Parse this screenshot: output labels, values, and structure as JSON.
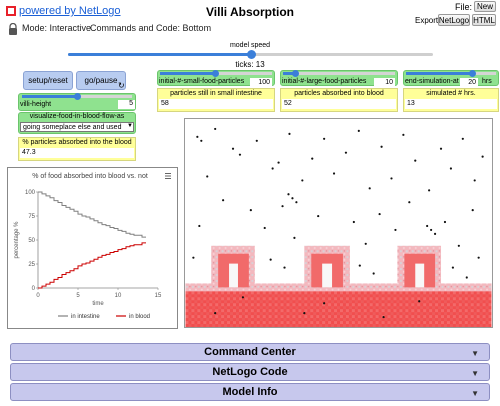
{
  "header": {
    "powered_by": "powered by NetLogo",
    "title": "Villi Absorption",
    "mode": "Mode: Interactive",
    "commands_position": "Commands and Code: Bottom",
    "file_label": "File:",
    "new_label": "New",
    "export_label": "Export:",
    "export_netlogo": "NetLogo",
    "export_html": "HTML"
  },
  "speed": {
    "label": "model speed",
    "value": 0.5,
    "ticks_text": "ticks: 13"
  },
  "buttons": {
    "setup": "setup/reset",
    "go": "go/pause"
  },
  "villi_height": {
    "label": "villi-height",
    "value": "5"
  },
  "visualize_chooser": {
    "label": "visualize-food-in-blood-flow-as",
    "selected": "going someplace else and used"
  },
  "pct_monitor": {
    "label": "% particles absorbed into the blood",
    "value": "47.3"
  },
  "sliders": {
    "small": {
      "label": "initial-#-small-food-particles",
      "value": "100"
    },
    "large": {
      "label": "initial-#-large-food-particles",
      "value": "10"
    },
    "end": {
      "label": "end-simulation-at",
      "value": "20",
      "units": "hrs"
    }
  },
  "monitors": {
    "small_still": {
      "label": "particles still in small intestine",
      "value": "58"
    },
    "absorbed": {
      "label": "particles absorbed into blood",
      "value": "52"
    },
    "simulated": {
      "label": "simulated # hrs.",
      "value": "13"
    }
  },
  "plot": {
    "title": "% of food absorbed into blood vs. not",
    "menu_icon": "hamburger-icon"
  },
  "chart_data": {
    "type": "line",
    "title": "% of food absorbed into blood vs. not",
    "xlabel": "time",
    "ylabel": "percentage %",
    "xlim": [
      0,
      15
    ],
    "ylim": [
      0,
      100
    ],
    "x_ticks": [
      "0",
      "5",
      "10",
      "15"
    ],
    "y_ticks": [
      "0",
      "25",
      "50",
      "75",
      "100"
    ],
    "series": [
      {
        "name": "in intestine",
        "color": "#808080",
        "x": [
          0,
          0.5,
          1,
          1.5,
          2,
          2.5,
          3,
          3.5,
          4,
          4.5,
          5,
          5.5,
          6,
          6.5,
          7,
          7.5,
          8,
          8.5,
          9,
          9.5,
          10,
          10.5,
          11,
          11.5,
          12,
          12.5,
          13,
          13.5
        ],
        "y": [
          100,
          98,
          96,
          94,
          91,
          89,
          86,
          84,
          82,
          80,
          77,
          75,
          74,
          72,
          70,
          68,
          66,
          65,
          63,
          62,
          60,
          59,
          57,
          56,
          55,
          55,
          53,
          53
        ]
      },
      {
        "name": "in blood",
        "color": "#cc0000",
        "x": [
          0,
          0.5,
          1,
          1.5,
          2,
          2.5,
          3,
          3.5,
          4,
          4.5,
          5,
          5.5,
          6,
          6.5,
          7,
          7.5,
          8,
          8.5,
          9,
          9.5,
          10,
          10.5,
          11,
          11.5,
          12,
          12.5,
          13,
          13.5
        ],
        "y": [
          0,
          2,
          4,
          6,
          9,
          11,
          14,
          16,
          18,
          20,
          23,
          25,
          26,
          28,
          30,
          32,
          34,
          35,
          37,
          38,
          40,
          41,
          43,
          44,
          45,
          45,
          47,
          47
        ]
      }
    ],
    "legend": "bottom",
    "grid": false
  },
  "panels": {
    "command_center": "Command Center",
    "netlogo_code": "NetLogo Code",
    "model_info": "Model Info"
  },
  "colors": {
    "accent": "#3b7fd9",
    "button_blue": "#b8ccf0",
    "slider_green": "#8fe28f",
    "monitor_yellow": "#ffff99",
    "tissue": "#f16a6a",
    "panel": "#c7c8ed"
  }
}
